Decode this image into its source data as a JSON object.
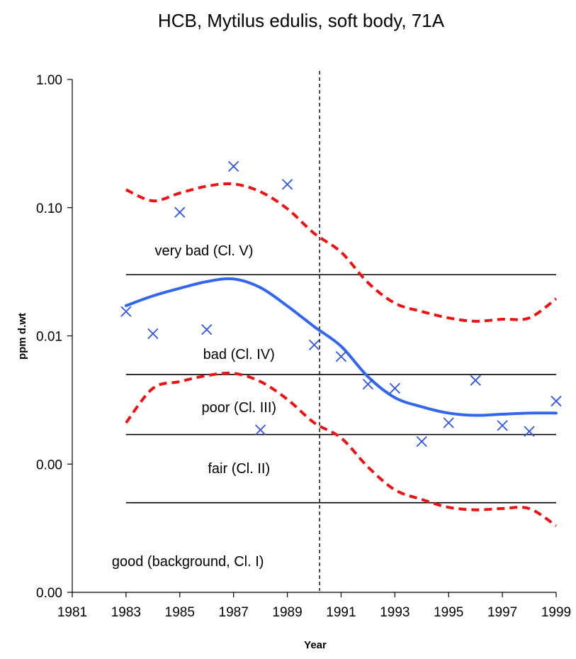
{
  "chart_data": {
    "type": "scatter",
    "title": "HCB, Mytilus edulis, soft body, 71A",
    "xlabel": "Year",
    "ylabel": "ppm d.wt",
    "xlim": [
      1981,
      1999
    ],
    "x_ticks": [
      1981,
      1983,
      1985,
      1987,
      1989,
      1991,
      1993,
      1995,
      1997,
      1999
    ],
    "y_scale": "log",
    "ylim": [
      0.0001,
      1.0
    ],
    "y_ticks": [
      {
        "value": 1.0,
        "label": "1.00"
      },
      {
        "value": 0.1,
        "label": "0.10"
      },
      {
        "value": 0.01,
        "label": "0.01"
      },
      {
        "value": 0.001,
        "label": "0.00"
      },
      {
        "value": 0.0001,
        "label": "0.00"
      }
    ],
    "grid": false,
    "legend": "none",
    "colors": {
      "points": "#3355dd",
      "trend": "#3366ee",
      "confidence": "#ee1111",
      "class_lines": "#000000",
      "divider": "#000000"
    },
    "series": [
      {
        "style": "x-markers",
        "points": [
          {
            "x": 1983,
            "y": 0.0155
          },
          {
            "x": 1984,
            "y": 0.0104
          },
          {
            "x": 1985,
            "y": 0.092
          },
          {
            "x": 1986,
            "y": 0.0112
          },
          {
            "x": 1987,
            "y": 0.21
          },
          {
            "x": 1988,
            "y": 0.00185
          },
          {
            "x": 1989,
            "y": 0.152
          },
          {
            "x": 1990,
            "y": 0.0085
          },
          {
            "x": 1991,
            "y": 0.0069
          },
          {
            "x": 1992,
            "y": 0.0042
          },
          {
            "x": 1993,
            "y": 0.0039
          },
          {
            "x": 1994,
            "y": 0.0015
          },
          {
            "x": 1995,
            "y": 0.0021
          },
          {
            "x": 1996,
            "y": 0.0045
          },
          {
            "x": 1997,
            "y": 0.002
          },
          {
            "x": 1998,
            "y": 0.0018
          },
          {
            "x": 1999,
            "y": 0.0031
          }
        ]
      },
      {
        "style": "trend-line",
        "points": [
          {
            "x": 1983,
            "y": 0.0172
          },
          {
            "x": 1984,
            "y": 0.0205
          },
          {
            "x": 1985,
            "y": 0.0235
          },
          {
            "x": 1986,
            "y": 0.0265
          },
          {
            "x": 1987,
            "y": 0.0278
          },
          {
            "x": 1988,
            "y": 0.0238
          },
          {
            "x": 1989,
            "y": 0.0171
          },
          {
            "x": 1990,
            "y": 0.0118
          },
          {
            "x": 1991,
            "y": 0.0083
          },
          {
            "x": 1992,
            "y": 0.0048
          },
          {
            "x": 1993,
            "y": 0.0033
          },
          {
            "x": 1994,
            "y": 0.0028
          },
          {
            "x": 1995,
            "y": 0.0025
          },
          {
            "x": 1996,
            "y": 0.0024
          },
          {
            "x": 1997,
            "y": 0.00245
          },
          {
            "x": 1998,
            "y": 0.0025
          },
          {
            "x": 1999,
            "y": 0.0025
          }
        ]
      },
      {
        "style": "dashed-upper",
        "points": [
          {
            "x": 1983,
            "y": 0.138
          },
          {
            "x": 1984,
            "y": 0.113
          },
          {
            "x": 1985,
            "y": 0.13
          },
          {
            "x": 1986,
            "y": 0.147
          },
          {
            "x": 1987,
            "y": 0.153
          },
          {
            "x": 1988,
            "y": 0.133
          },
          {
            "x": 1989,
            "y": 0.098
          },
          {
            "x": 1990,
            "y": 0.063
          },
          {
            "x": 1991,
            "y": 0.045
          },
          {
            "x": 1992,
            "y": 0.026
          },
          {
            "x": 1993,
            "y": 0.018
          },
          {
            "x": 1994,
            "y": 0.0155
          },
          {
            "x": 1995,
            "y": 0.0138
          },
          {
            "x": 1996,
            "y": 0.013
          },
          {
            "x": 1997,
            "y": 0.0135
          },
          {
            "x": 1998,
            "y": 0.0138
          },
          {
            "x": 1999,
            "y": 0.0195
          }
        ]
      },
      {
        "style": "dashed-lower",
        "points": [
          {
            "x": 1983,
            "y": 0.0021
          },
          {
            "x": 1984,
            "y": 0.0039
          },
          {
            "x": 1985,
            "y": 0.0044
          },
          {
            "x": 1986,
            "y": 0.0049
          },
          {
            "x": 1987,
            "y": 0.0051
          },
          {
            "x": 1988,
            "y": 0.0044
          },
          {
            "x": 1989,
            "y": 0.0032
          },
          {
            "x": 1990,
            "y": 0.0021
          },
          {
            "x": 1991,
            "y": 0.0016
          },
          {
            "x": 1992,
            "y": 0.00095
          },
          {
            "x": 1993,
            "y": 0.00063
          },
          {
            "x": 1994,
            "y": 0.00053
          },
          {
            "x": 1995,
            "y": 0.00046
          },
          {
            "x": 1996,
            "y": 0.00044
          },
          {
            "x": 1997,
            "y": 0.00045
          },
          {
            "x": 1998,
            "y": 0.00045
          },
          {
            "x": 1999,
            "y": 0.00033
          }
        ]
      }
    ],
    "reference_lines": [
      {
        "y": 0.03,
        "x_from": 1983,
        "x_to": 1999
      },
      {
        "y": 0.005,
        "x_from": 1983,
        "x_to": 1999
      },
      {
        "y": 0.0017,
        "x_from": 1983,
        "x_to": 1999
      },
      {
        "y": 0.0005,
        "x_from": 1983,
        "x_to": 1999
      }
    ],
    "divider_x": 1990.2,
    "annotations": [
      {
        "text": "very bad (Cl. V)",
        "x": 1985.9,
        "y": 0.0425
      },
      {
        "text": "bad (Cl. IV)",
        "x": 1987.2,
        "y": 0.0066
      },
      {
        "text": "poor (Cl. III)",
        "x": 1987.2,
        "y": 0.00255
      },
      {
        "text": "fair (Cl. II)",
        "x": 1987.2,
        "y": 0.00085
      },
      {
        "text": "good (background, Cl. I)",
        "x": 1985.3,
        "y": 0.00016
      }
    ]
  }
}
